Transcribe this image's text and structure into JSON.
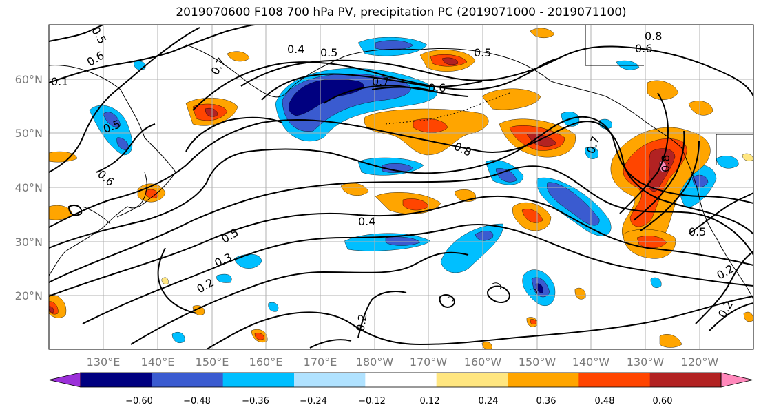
{
  "title": "2019070600 F108 700 hPa PV, precipitation PC (2019071000 - 2019071100)",
  "map": {
    "lat_labels": [
      "60°N",
      "50°N",
      "40°N",
      "30°N",
      "20°N"
    ],
    "lon_labels": [
      "130°E",
      "140°E",
      "150°E",
      "160°E",
      "170°E",
      "180°W",
      "170°W",
      "160°W",
      "150°W",
      "140°W",
      "130°W",
      "120°W"
    ],
    "contour_labels": [
      "0.5",
      "0.6",
      "0.4",
      "0.5",
      "0.7",
      "0.6",
      "0.5",
      "0.8",
      "0.6",
      "0.1",
      "0.7",
      "0.5",
      "0.6",
      "0.4",
      "0.5",
      "0.3",
      "0.2",
      "0.8",
      "0.7",
      "0.8",
      "0.5",
      "0.2",
      "0.2",
      "0.2"
    ],
    "land_color": "#000000",
    "grid_color": "#b0b0b0"
  },
  "colorbar": {
    "tick_labels": [
      "−0.60",
      "−0.48",
      "−0.36",
      "−0.24",
      "−0.12",
      "0.12",
      "0.24",
      "0.36",
      "0.48",
      "0.60"
    ],
    "colors": [
      "#9b30d9",
      "#000080",
      "#3a5bd0",
      "#00bfff",
      "#b0e2ff",
      "#ffffff",
      "#ffe680",
      "#ffa500",
      "#ff4500",
      "#b22222",
      "#ff88bb"
    ]
  }
}
